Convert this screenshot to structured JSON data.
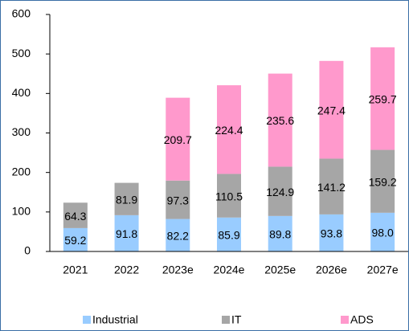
{
  "chart_data": {
    "type": "bar",
    "stacked": true,
    "categories": [
      "2021",
      "2022",
      "2023e",
      "2024e",
      "2025e",
      "2026e",
      "2027e"
    ],
    "series": [
      {
        "name": "Industrial",
        "color": "#99ccff",
        "values": [
          59.2,
          91.8,
          82.2,
          85.9,
          89.8,
          93.8,
          98.0
        ],
        "value_labels": [
          "59.2",
          "91.8",
          "82.2",
          "85.9",
          "89.8",
          "93.8",
          "98.0"
        ]
      },
      {
        "name": "IT",
        "color": "#a6a6a6",
        "values": [
          64.3,
          81.9,
          97.3,
          110.5,
          124.9,
          141.2,
          159.2
        ]
      },
      {
        "name": "ADS",
        "color": "#ff99cc",
        "values": [
          null,
          null,
          209.7,
          224.4,
          235.6,
          247.4,
          259.7
        ]
      }
    ],
    "ylim": [
      0,
      600
    ],
    "yticks": [
      0,
      100,
      200,
      300,
      400,
      500,
      600
    ],
    "grid": false,
    "legend": "bottom"
  }
}
